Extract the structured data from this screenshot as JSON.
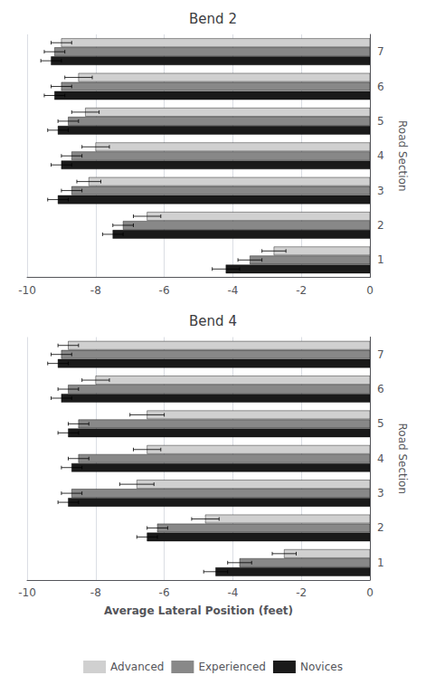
{
  "chart_data": [
    {
      "type": "bar",
      "orientation": "horizontal",
      "title": "Bend 2",
      "categories": [
        "1",
        "2",
        "3",
        "4",
        "5",
        "6",
        "7"
      ],
      "series": [
        {
          "name": "Advanced",
          "color": "#d0d0d0",
          "values": [
            -2.8,
            -6.5,
            -8.2,
            -8.0,
            -8.3,
            -8.5,
            -9.0
          ],
          "errors": [
            0.35,
            0.4,
            0.35,
            0.4,
            0.4,
            0.4,
            0.3
          ]
        },
        {
          "name": "Experienced",
          "color": "#888888",
          "values": [
            -3.5,
            -7.2,
            -8.7,
            -8.7,
            -8.8,
            -9.0,
            -9.2
          ],
          "errors": [
            0.35,
            0.3,
            0.3,
            0.3,
            0.3,
            0.3,
            0.3
          ]
        },
        {
          "name": "Novices",
          "color": "#1a1a1a",
          "values": [
            -4.2,
            -7.5,
            -9.1,
            -9.0,
            -9.1,
            -9.2,
            -9.3
          ],
          "errors": [
            0.4,
            0.3,
            0.3,
            0.3,
            0.3,
            0.3,
            0.3
          ]
        }
      ],
      "ylabel": "Road Section",
      "xlim": [
        -10,
        0
      ],
      "xticks": [
        -10,
        -8,
        -6,
        -4,
        -2,
        0
      ],
      "grid": true
    },
    {
      "type": "bar",
      "orientation": "horizontal",
      "title": "Bend 4",
      "categories": [
        "1",
        "2",
        "3",
        "4",
        "5",
        "6",
        "7"
      ],
      "series": [
        {
          "name": "Advanced",
          "color": "#d0d0d0",
          "values": [
            -2.5,
            -4.8,
            -6.8,
            -6.5,
            -6.5,
            -8.0,
            -8.8
          ],
          "errors": [
            0.35,
            0.4,
            0.5,
            0.4,
            0.5,
            0.4,
            0.3
          ]
        },
        {
          "name": "Experienced",
          "color": "#888888",
          "values": [
            -3.8,
            -6.2,
            -8.7,
            -8.5,
            -8.5,
            -8.8,
            -9.0
          ],
          "errors": [
            0.35,
            0.3,
            0.3,
            0.3,
            0.3,
            0.3,
            0.3
          ]
        },
        {
          "name": "Novices",
          "color": "#1a1a1a",
          "values": [
            -4.5,
            -6.5,
            -8.8,
            -8.7,
            -8.8,
            -9.0,
            -9.1
          ],
          "errors": [
            0.35,
            0.3,
            0.3,
            0.3,
            0.3,
            0.3,
            0.3
          ]
        }
      ],
      "xlabel": "Average Lateral Position (feet)",
      "ylabel": "Road Section",
      "xlim": [
        -10,
        0
      ],
      "xticks": [
        -10,
        -8,
        -6,
        -4,
        -2,
        0
      ],
      "grid": true,
      "legend": "bottom"
    }
  ]
}
